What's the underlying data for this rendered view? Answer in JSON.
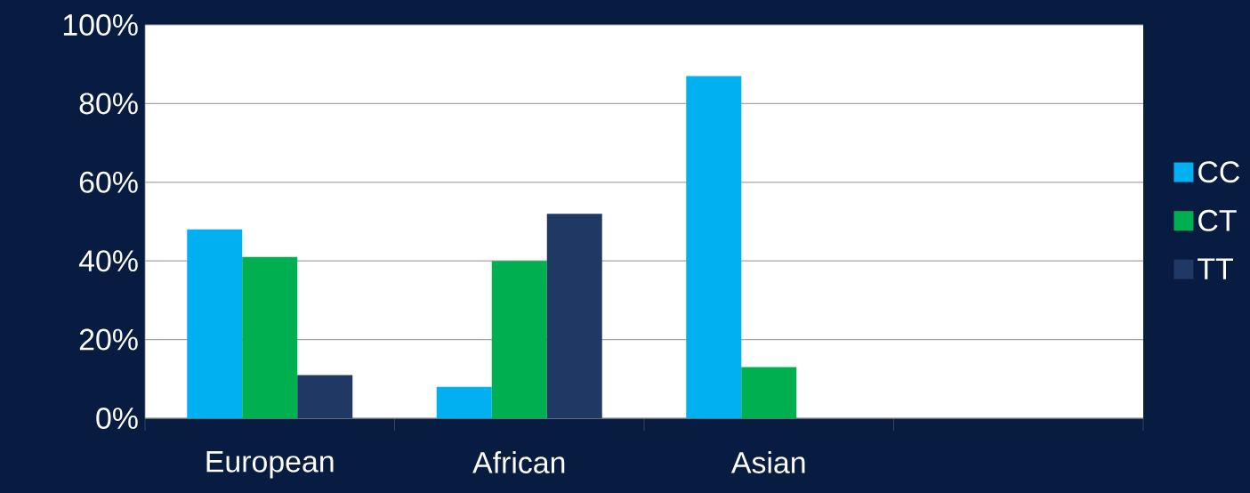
{
  "chart_data": {
    "type": "bar",
    "categories": [
      "European",
      "African",
      "Asian",
      null
    ],
    "series": [
      {
        "name": "CC",
        "color": "#00b0f0",
        "values": [
          48,
          8,
          87,
          null
        ]
      },
      {
        "name": "CT",
        "color": "#00b050",
        "values": [
          41,
          40,
          13,
          null
        ]
      },
      {
        "name": "TT",
        "color": "#1f3864",
        "values": [
          11,
          52,
          null,
          null
        ]
      }
    ],
    "ylim": [
      0,
      100
    ],
    "yticks": [
      {
        "value": 0,
        "label": "0%"
      },
      {
        "value": 20,
        "label": "20%"
      },
      {
        "value": 40,
        "label": "40%"
      },
      {
        "value": 60,
        "label": "60%"
      },
      {
        "value": 80,
        "label": "80%"
      },
      {
        "value": 100,
        "label": "100%"
      }
    ],
    "grid": "y",
    "legend": "right"
  }
}
